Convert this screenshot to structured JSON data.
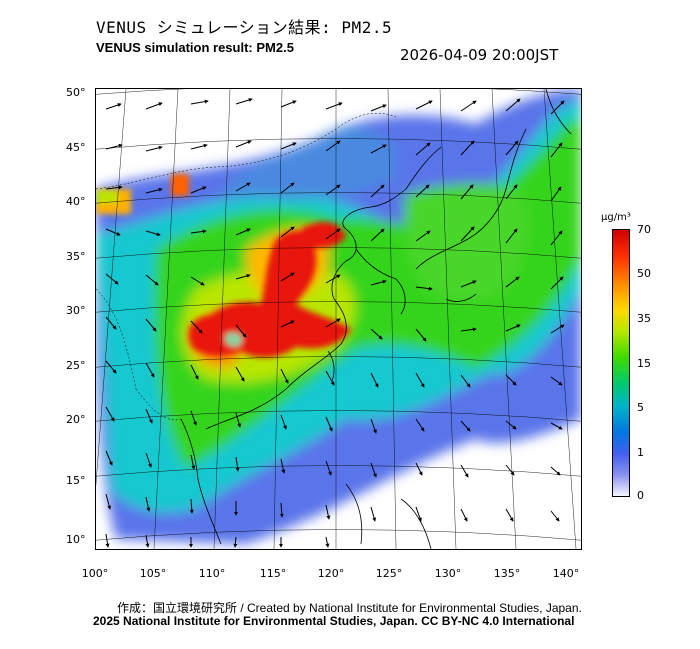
{
  "header": {
    "title_ja": "VENUS シミュレーション結果: PM2.5",
    "title_en": "VENUS simulation result: PM2.5",
    "timestamp": "2026-04-09 20:00JST"
  },
  "map": {
    "lat_labels": [
      "50°",
      "45°",
      "40°",
      "35°",
      "30°",
      "25°",
      "20°",
      "15°",
      "10°"
    ],
    "lon_labels": [
      "100°",
      "105°",
      "110°",
      "115°",
      "120°",
      "125°",
      "130°",
      "135°",
      "140°"
    ]
  },
  "colorbar": {
    "unit": "μg/m³",
    "labels": [
      "70",
      "50",
      "35",
      "15",
      "5",
      "1",
      "0"
    ],
    "colors": [
      "#d00000",
      "#ff9a00",
      "#ffd800",
      "#3cdc00",
      "#00b4c8",
      "#0078e0",
      "#f4f4ff"
    ]
  },
  "footer": {
    "credit": "作成：国立環境研究所 / Created by National Institute for Environmental Studies, Japan.",
    "license": "2025 National Institute for Environmental Studies, Japan. CC BY-NC 4.0 International"
  }
}
